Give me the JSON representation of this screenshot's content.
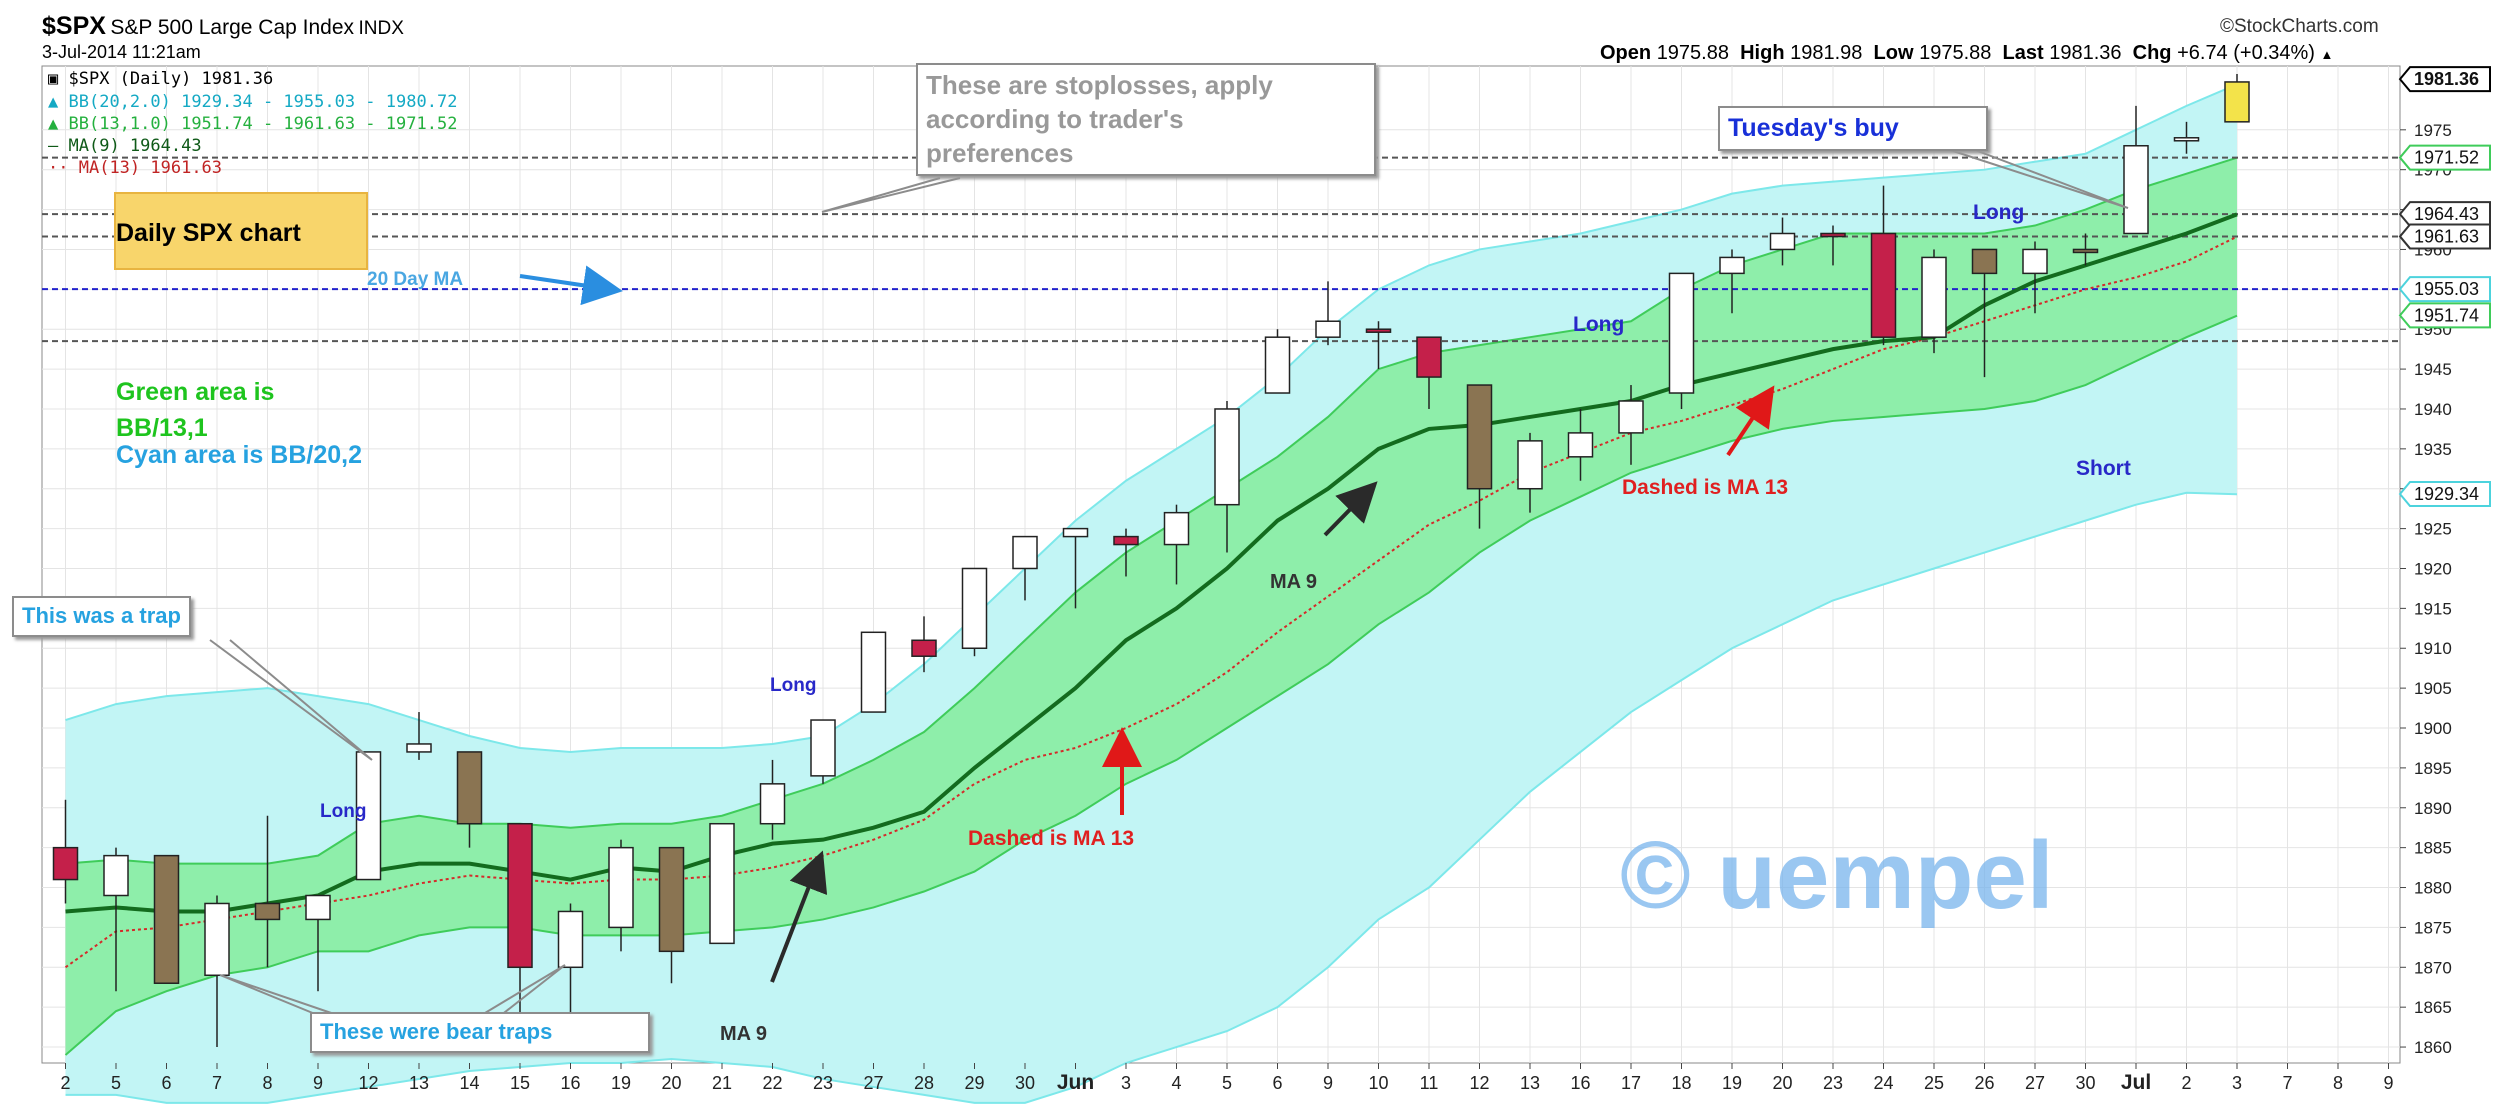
{
  "header": {
    "symbol": "$SPX",
    "name": "S&P 500 Large Cap Index",
    "exchange": "INDX",
    "date": "3-Jul-2014 11:21am",
    "brand": "©StockCharts.com",
    "ohlc": {
      "open_label": "Open",
      "open": "1975.88",
      "high_label": "High",
      "high": "1981.98",
      "low_label": "Low",
      "low": "1975.88",
      "last_label": "Last",
      "last": "1981.36",
      "chg_label": "Chg",
      "chg": "+6.74 (+0.34%)"
    }
  },
  "legend": {
    "main": "$SPX (Daily) 1981.36",
    "bb20": "BB(20,2.0) 1929.34 - 1955.03 - 1980.72",
    "bb13": "BB(13,1.0) 1951.74 - 1961.63 - 1971.52",
    "ma9": "MA(9) 1964.43",
    "ma13": "MA(13) 1961.63"
  },
  "annotations": {
    "stoploss": "These are stoplosses, apply\naccording to trader's\npreferences",
    "daily_chart": "Daily SPX chart",
    "ma20": "20 Day MA",
    "green_area": "Green area is\nBB/13,1",
    "cyan_area": "Cyan area is BB/20,2",
    "trap": "This was a trap",
    "bear_traps": "These were bear traps",
    "tuesday": "Tuesday's buy",
    "long_1": "Long",
    "long_2": "Long",
    "long_3": "Long",
    "long_4": "Long",
    "short": "Short",
    "ma9_a": "MA 9",
    "ma9_b": "MA 9",
    "ma13_a": "Dashed is MA 13",
    "ma13_b": "Dashed is MA 13",
    "watermark": "© uempel"
  },
  "colors": {
    "cyan_band": "#c2f5f5",
    "cyan_band_edge": "#7de8ea",
    "green_band": "#8eeeaa",
    "green_band_edge": "#3fcc5a",
    "ma9": "#136b1e",
    "ma13": "#d42a2a",
    "up_candle": "#ffffff",
    "down_candle": "#8a7452",
    "red_candle": "#c4204a",
    "stop_line": "#555555",
    "ma20_line": "#2222cc"
  },
  "chart_data": {
    "type": "candlestick",
    "title": "$SPX S&P 500 Large Cap Index",
    "ylim": [
      1858,
      1983
    ],
    "y_ticks": [
      1860,
      1865,
      1870,
      1875,
      1880,
      1885,
      1890,
      1895,
      1900,
      1905,
      1910,
      1915,
      1920,
      1925,
      1930,
      1935,
      1940,
      1945,
      1950,
      1955,
      1960,
      1965,
      1970,
      1975
    ],
    "x_tick_labels": [
      "2",
      "5",
      "6",
      "7",
      "8",
      "9",
      "12",
      "13",
      "14",
      "15",
      "16",
      "19",
      "20",
      "21",
      "22",
      "23",
      "27",
      "28",
      "29",
      "30",
      "Jun",
      "3",
      "4",
      "5",
      "6",
      "9",
      "10",
      "11",
      "12",
      "13",
      "16",
      "17",
      "18",
      "19",
      "20",
      "23",
      "24",
      "25",
      "26",
      "27",
      "30",
      "Jul",
      "2",
      "3",
      "7",
      "8",
      "9"
    ],
    "candles": [
      {
        "date": "2",
        "open": 1885,
        "high": 1891,
        "low": 1878,
        "close": 1881,
        "color": "red"
      },
      {
        "date": "5",
        "open": 1879,
        "high": 1885,
        "low": 1867,
        "close": 1884,
        "color": "up"
      },
      {
        "date": "6",
        "open": 1884,
        "high": 1884,
        "low": 1868,
        "close": 1868,
        "color": "down"
      },
      {
        "date": "7",
        "open": 1869,
        "high": 1879,
        "low": 1860,
        "close": 1878,
        "color": "up"
      },
      {
        "date": "8",
        "open": 1878,
        "high": 1889,
        "low": 1870,
        "close": 1876,
        "color": "down"
      },
      {
        "date": "9",
        "open": 1876,
        "high": 1879,
        "low": 1867,
        "close": 1879,
        "color": "up"
      },
      {
        "date": "12",
        "open": 1881,
        "high": 1897,
        "low": 1881,
        "close": 1897,
        "color": "up"
      },
      {
        "date": "13",
        "open": 1897,
        "high": 1902,
        "low": 1896,
        "close": 1898,
        "color": "up"
      },
      {
        "date": "14",
        "open": 1897,
        "high": 1897,
        "low": 1885,
        "close": 1888,
        "color": "down"
      },
      {
        "date": "15",
        "open": 1888,
        "high": 1888,
        "low": 1862,
        "close": 1870,
        "color": "red"
      },
      {
        "date": "16",
        "open": 1870,
        "high": 1878,
        "low": 1862,
        "close": 1877,
        "color": "up"
      },
      {
        "date": "19",
        "open": 1875,
        "high": 1886,
        "low": 1872,
        "close": 1885,
        "color": "up"
      },
      {
        "date": "20",
        "open": 1885,
        "high": 1885,
        "low": 1868,
        "close": 1872,
        "color": "down"
      },
      {
        "date": "21",
        "open": 1873,
        "high": 1888,
        "low": 1873,
        "close": 1888,
        "color": "up"
      },
      {
        "date": "22",
        "open": 1888,
        "high": 1896,
        "low": 1886,
        "close": 1893,
        "color": "up"
      },
      {
        "date": "23",
        "open": 1894,
        "high": 1901,
        "low": 1893,
        "close": 1901,
        "color": "up"
      },
      {
        "date": "27",
        "open": 1902,
        "high": 1912,
        "low": 1902,
        "close": 1912,
        "color": "up"
      },
      {
        "date": "28",
        "open": 1911,
        "high": 1914,
        "low": 1907,
        "close": 1909,
        "color": "red"
      },
      {
        "date": "29",
        "open": 1910,
        "high": 1920,
        "low": 1909,
        "close": 1920,
        "color": "up"
      },
      {
        "date": "30",
        "open": 1920,
        "high": 1924,
        "low": 1916,
        "close": 1924,
        "color": "up"
      },
      {
        "date": "Jun",
        "open": 1924,
        "high": 1925,
        "low": 1915,
        "close": 1925,
        "color": "up"
      },
      {
        "date": "3",
        "open": 1924,
        "high": 1925,
        "low": 1919,
        "close": 1923,
        "color": "red"
      },
      {
        "date": "4",
        "open": 1923,
        "high": 1928,
        "low": 1918,
        "close": 1927,
        "color": "up"
      },
      {
        "date": "5",
        "open": 1928,
        "high": 1941,
        "low": 1922,
        "close": 1940,
        "color": "up"
      },
      {
        "date": "6",
        "open": 1942,
        "high": 1950,
        "low": 1942,
        "close": 1949,
        "color": "up"
      },
      {
        "date": "9",
        "open": 1949,
        "high": 1956,
        "low": 1948,
        "close": 1951,
        "color": "up"
      },
      {
        "date": "10",
        "open": 1950,
        "high": 1951,
        "low": 1945,
        "close": 1950,
        "color": "red"
      },
      {
        "date": "11",
        "open": 1949,
        "high": 1949,
        "low": 1940,
        "close": 1944,
        "color": "red"
      },
      {
        "date": "12",
        "open": 1943,
        "high": 1943,
        "low": 1925,
        "close": 1930,
        "color": "down"
      },
      {
        "date": "13",
        "open": 1930,
        "high": 1937,
        "low": 1927,
        "close": 1936,
        "color": "up"
      },
      {
        "date": "16",
        "open": 1934,
        "high": 1940,
        "low": 1931,
        "close": 1937,
        "color": "up"
      },
      {
        "date": "17",
        "open": 1937,
        "high": 1943,
        "low": 1933,
        "close": 1941,
        "color": "up"
      },
      {
        "date": "18",
        "open": 1942,
        "high": 1957,
        "low": 1940,
        "close": 1957,
        "color": "up"
      },
      {
        "date": "19",
        "open": 1957,
        "high": 1960,
        "low": 1952,
        "close": 1959,
        "color": "up"
      },
      {
        "date": "20",
        "open": 1960,
        "high": 1964,
        "low": 1958,
        "close": 1962,
        "color": "up"
      },
      {
        "date": "23",
        "open": 1962,
        "high": 1963,
        "low": 1958,
        "close": 1962,
        "color": "red"
      },
      {
        "date": "24",
        "open": 1962,
        "high": 1968,
        "low": 1948,
        "close": 1949,
        "color": "red"
      },
      {
        "date": "25",
        "open": 1949,
        "high": 1960,
        "low": 1947,
        "close": 1959,
        "color": "up"
      },
      {
        "date": "26",
        "open": 1960,
        "high": 1960,
        "low": 1944,
        "close": 1957,
        "color": "down"
      },
      {
        "date": "27",
        "open": 1957,
        "high": 1961,
        "low": 1952,
        "close": 1960,
        "color": "up"
      },
      {
        "date": "30",
        "open": 1960,
        "high": 1962,
        "low": 1958,
        "close": 1960,
        "color": "down"
      },
      {
        "date": "Jul",
        "open": 1962,
        "high": 1978,
        "low": 1962,
        "close": 1973,
        "color": "up"
      },
      {
        "date": "2",
        "open": 1974,
        "high": 1976,
        "low": 1972,
        "close": 1974,
        "color": "up"
      },
      {
        "date": "3",
        "open": 1976,
        "high": 1982,
        "low": 1976,
        "close": 1981,
        "color": "yellow"
      }
    ],
    "series": [
      {
        "name": "MA(9)",
        "values": [
          1877,
          1877.5,
          1877,
          1877,
          1878,
          1879,
          1882,
          1883,
          1883,
          1882,
          1881,
          1882.5,
          1882,
          1884,
          1885.5,
          1886,
          1887.5,
          1889.5,
          1895,
          1900,
          1905,
          1911,
          1915,
          1920,
          1926,
          1930,
          1935,
          1937.5,
          1938,
          1939,
          1940,
          1941,
          1943,
          1944.5,
          1946,
          1947.5,
          1948.5,
          1949,
          1953,
          1956,
          1958,
          1960,
          1962,
          1964.4
        ]
      },
      {
        "name": "MA(13)",
        "values": [
          1870,
          1874.5,
          1875,
          1876,
          1877,
          1878,
          1879,
          1880.5,
          1881.5,
          1881,
          1880.5,
          1881,
          1881,
          1881.5,
          1882.5,
          1884,
          1886,
          1888.5,
          1893,
          1896,
          1897.5,
          1900,
          1903,
          1907,
          1912,
          1916.5,
          1921,
          1925.5,
          1928.5,
          1932,
          1934.5,
          1937,
          1938.5,
          1940.5,
          1942.5,
          1945,
          1947.5,
          1949,
          1951,
          1953,
          1955,
          1956.5,
          1958.5,
          1961.6
        ]
      },
      {
        "name": "BB(13,1.0) upper",
        "values": [
          1883,
          1883.5,
          1883,
          1883,
          1883,
          1884,
          1888,
          1889,
          1888,
          1888,
          1887.5,
          1888,
          1888,
          1889,
          1891,
          1893,
          1896,
          1899.5,
          1905,
          1911,
          1917,
          1922,
          1926,
          1930,
          1934,
          1939,
          1945,
          1947,
          1948,
          1949,
          1950,
          1951,
          1955,
          1958,
          1960,
          1962,
          1962,
          1962,
          1962,
          1963,
          1965,
          1967.5,
          1969.5,
          1971.5
        ]
      },
      {
        "name": "BB(13,1.0) lower",
        "values": [
          1859,
          1864.5,
          1867,
          1869,
          1870,
          1872,
          1872,
          1874,
          1875,
          1875,
          1874,
          1874,
          1874,
          1874.5,
          1875,
          1876,
          1877.5,
          1879.5,
          1882,
          1886,
          1889,
          1893,
          1896,
          1900,
          1904,
          1908,
          1913,
          1917,
          1922,
          1926,
          1929,
          1932,
          1934,
          1936,
          1937.5,
          1938.5,
          1939,
          1939.5,
          1940,
          1941,
          1943,
          1946,
          1949,
          1951.7
        ]
      },
      {
        "name": "BB(20,2.0) upper",
        "values": [
          1901,
          1903,
          1904,
          1904.5,
          1905,
          1904,
          1903,
          1901,
          1899,
          1897.5,
          1897,
          1897.5,
          1897.5,
          1897.5,
          1898,
          1899,
          1903,
          1908,
          1914,
          1920,
          1926,
          1931,
          1935,
          1939,
          1944,
          1950,
          1955,
          1958,
          1960,
          1961,
          1962,
          1963.5,
          1965,
          1967,
          1968,
          1968.5,
          1969,
          1969.5,
          1970,
          1971,
          1972,
          1975,
          1978,
          1980.7
        ]
      },
      {
        "name": "BB(20,2.0) lower",
        "values": [
          1854,
          1854,
          1853,
          1853,
          1853,
          1854,
          1855,
          1856,
          1857,
          1857.5,
          1858,
          1858,
          1858.5,
          1858,
          1857.5,
          1856,
          1855,
          1854,
          1853,
          1853,
          1855,
          1858,
          1860,
          1862,
          1865,
          1870,
          1876,
          1880,
          1886,
          1892,
          1897,
          1902,
          1906,
          1910,
          1913,
          1916,
          1918,
          1920,
          1922,
          1924,
          1926,
          1928,
          1929.5,
          1929.3
        ]
      }
    ],
    "horizontal_lines": [
      {
        "value": 1971.52,
        "label": "1971.52",
        "style": "dashed",
        "color": "#555555"
      },
      {
        "value": 1964.43,
        "label": "1964.43",
        "style": "dashed",
        "color": "#555555"
      },
      {
        "value": 1961.63,
        "label": "1961.63",
        "style": "dashed",
        "color": "#555555"
      },
      {
        "value": 1955.03,
        "label": "1955.03",
        "style": "dashed",
        "color": "#2222cc"
      },
      {
        "value": 1948.5,
        "label": "",
        "style": "dashed",
        "color": "#555555"
      }
    ],
    "price_tags": [
      {
        "value": 1981.36,
        "label": "1981.36",
        "style": "last"
      },
      {
        "value": 1971.52,
        "label": "1971.52",
        "style": "green"
      },
      {
        "value": 1964.43,
        "label": "1964.43",
        "style": "dark"
      },
      {
        "value": 1961.63,
        "label": "1961.63",
        "style": "dark"
      },
      {
        "value": 1955.03,
        "label": "1955.03",
        "style": "cyan"
      },
      {
        "value": 1951.74,
        "label": "1951.74",
        "style": "green"
      },
      {
        "value": 1929.34,
        "label": "1929.34",
        "style": "cyan"
      }
    ]
  }
}
